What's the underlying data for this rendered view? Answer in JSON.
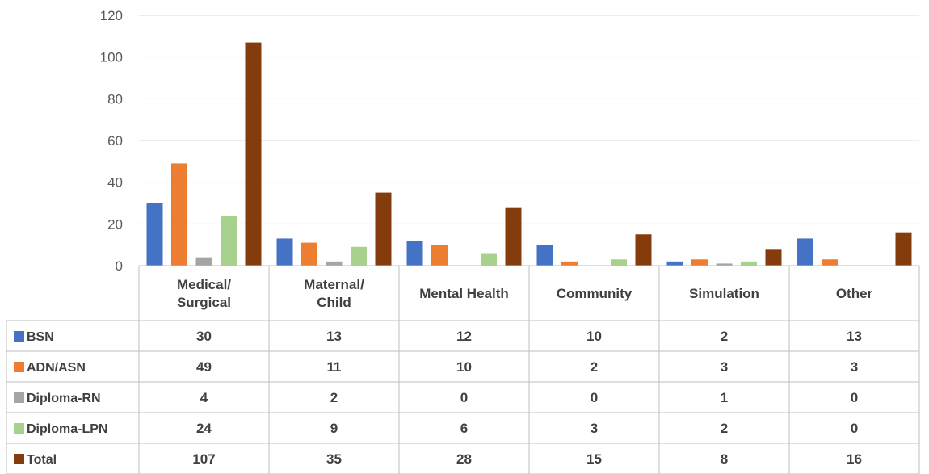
{
  "chart_data": {
    "type": "bar",
    "title": "",
    "xlabel": "",
    "ylabel": "",
    "ylim": [
      0,
      120
    ],
    "yticks": [
      0,
      20,
      40,
      60,
      80,
      100,
      120
    ],
    "grid": true,
    "legend": "data-table",
    "categories": [
      [
        "Medical/",
        "Surgical"
      ],
      [
        "Maternal/",
        "Child"
      ],
      [
        "Mental Health"
      ],
      [
        "Community"
      ],
      [
        "Simulation"
      ],
      [
        "Other"
      ]
    ],
    "series": [
      {
        "name": "BSN",
        "color": "#4472C4",
        "values": [
          30,
          13,
          12,
          10,
          2,
          13
        ]
      },
      {
        "name": "ADN/ASN",
        "color": "#ED7D31",
        "values": [
          49,
          11,
          10,
          2,
          3,
          3
        ]
      },
      {
        "name": "Diploma-RN",
        "color": "#A5A5A5",
        "values": [
          4,
          2,
          0,
          0,
          1,
          0
        ]
      },
      {
        "name": "Diploma-LPN",
        "color": "#A9D18E",
        "values": [
          24,
          9,
          6,
          3,
          2,
          0
        ]
      },
      {
        "name": "Total",
        "color": "#843C0C",
        "values": [
          107,
          35,
          28,
          15,
          8,
          16
        ]
      }
    ]
  }
}
